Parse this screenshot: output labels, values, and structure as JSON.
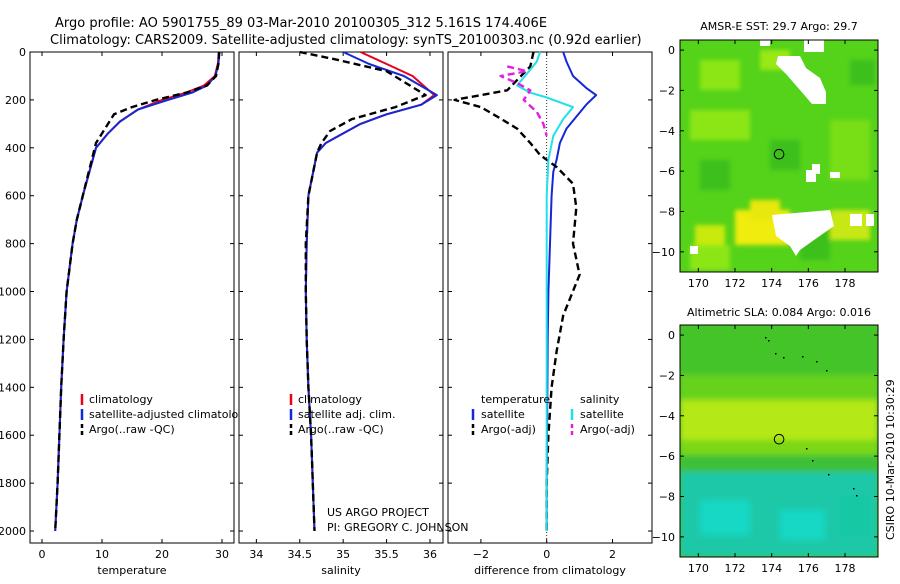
{
  "header": {
    "title_line1": "Argo profile: AO 5901755_89 03-Mar-2010 20100305_312 5.161S 174.406E",
    "title_line2": "Climatology: CARS2009. Satellite-adjusted climatology: synTS_20100303.nc (0.92d earlier)"
  },
  "footer": {
    "project_line1": "US ARGO PROJECT",
    "project_line2": "PI: GREGORY C. JOHNSON",
    "side_stamp": "CSIRO 10-Mar-2010 10:30:29"
  },
  "colors": {
    "climatology": "#e8001c",
    "satellite": "#1428d8",
    "argo": "#000000",
    "salinity_satellite": "#22e0e8",
    "salinity_argo": "#e020e0"
  },
  "chart_data": [
    {
      "type": "line",
      "id": "temperature",
      "xlabel": "temperature",
      "xlim": [
        -2,
        32
      ],
      "xticks": [
        0,
        10,
        20,
        30
      ],
      "ylim": [
        2050,
        0
      ],
      "yticks": [
        0,
        200,
        400,
        600,
        800,
        1000,
        1200,
        1400,
        1600,
        1800,
        2000
      ],
      "legend": [
        "climatology",
        "satellite-adjusted climatology",
        "Argo(..raw -QC)"
      ],
      "series": [
        {
          "name": "climatology",
          "style": "solid",
          "color_key": "climatology",
          "x": [
            29.5,
            29.3,
            28.8,
            27,
            24,
            20,
            16,
            13,
            11,
            9,
            6.8,
            5.8,
            5.1,
            4.6,
            4.1,
            3.6,
            3.2,
            2.9,
            2.6,
            2.4,
            2.2
          ],
          "y": [
            0,
            50,
            100,
            140,
            170,
            200,
            240,
            290,
            340,
            400,
            600,
            700,
            800,
            900,
            1000,
            1200,
            1400,
            1600,
            1800,
            1900,
            2000
          ]
        },
        {
          "name": "satellite-adjusted climatology",
          "style": "solid",
          "color_key": "satellite",
          "x": [
            29.6,
            29.4,
            28.9,
            27.5,
            25,
            21,
            16,
            13,
            11,
            9,
            6.8,
            5.8,
            5.1,
            4.6,
            4.1,
            3.6,
            3.2,
            2.9,
            2.6,
            2.4,
            2.2
          ],
          "y": [
            0,
            50,
            100,
            140,
            170,
            200,
            240,
            290,
            340,
            400,
            600,
            700,
            800,
            900,
            1000,
            1200,
            1400,
            1600,
            1800,
            1900,
            2000
          ]
        },
        {
          "name": "Argo(..raw -QC)",
          "style": "dashed",
          "color_key": "argo",
          "x": [
            29.5,
            29.4,
            29.0,
            27.5,
            24,
            19,
            15,
            12,
            11,
            9,
            6.8,
            5.8,
            5.1,
            4.6,
            4.1,
            3.6,
            3.2,
            2.9,
            2.6,
            2.4,
            2.2
          ],
          "y": [
            0,
            50,
            100,
            140,
            170,
            200,
            230,
            260,
            300,
            380,
            600,
            700,
            800,
            900,
            1000,
            1200,
            1400,
            1600,
            1800,
            1900,
            2000
          ]
        }
      ]
    },
    {
      "type": "line",
      "id": "salinity",
      "xlabel": "salinity",
      "xlim": [
        33.8,
        36.15
      ],
      "xticks": [
        34,
        34.5,
        35,
        35.5,
        36
      ],
      "ylim": [
        2050,
        0
      ],
      "yticks": [
        0,
        200,
        400,
        600,
        800,
        1000,
        1200,
        1400,
        1600,
        1800,
        2000
      ],
      "legend": [
        "climatology",
        "satellite adj. clim.",
        "Argo(..raw -QC)"
      ],
      "series": [
        {
          "name": "climatology",
          "style": "solid",
          "color_key": "climatology",
          "x": [
            35.2,
            35.5,
            35.8,
            36.05,
            35.9,
            35.5,
            35.2,
            35.0,
            34.8,
            34.7,
            34.6,
            34.58,
            34.57,
            34.58,
            34.6,
            34.63,
            34.65,
            34.67
          ],
          "y": [
            0,
            50,
            100,
            180,
            220,
            260,
            300,
            340,
            380,
            420,
            600,
            800,
            1000,
            1200,
            1400,
            1600,
            1800,
            2000
          ]
        },
        {
          "name": "satellite adj. clim.",
          "style": "solid",
          "color_key": "satellite",
          "x": [
            35.0,
            35.3,
            35.7,
            36.08,
            35.9,
            35.5,
            35.2,
            35.0,
            34.8,
            34.7,
            34.6,
            34.58,
            34.57,
            34.58,
            34.6,
            34.63,
            34.65,
            34.67
          ],
          "y": [
            0,
            50,
            100,
            180,
            220,
            260,
            300,
            340,
            380,
            420,
            600,
            800,
            1000,
            1200,
            1400,
            1600,
            1800,
            2000
          ]
        },
        {
          "name": "Argo(..raw -QC)",
          "style": "dashed",
          "color_key": "argo",
          "x": [
            34.5,
            34.9,
            35.5,
            35.95,
            35.6,
            35.1,
            34.85,
            34.75,
            34.7,
            34.6,
            34.57,
            34.57,
            34.58,
            34.6,
            34.63,
            34.65,
            34.67
          ],
          "y": [
            0,
            30,
            80,
            180,
            230,
            280,
            330,
            380,
            420,
            600,
            800,
            1000,
            1200,
            1400,
            1600,
            1800,
            2000
          ]
        }
      ]
    },
    {
      "type": "line",
      "id": "difference",
      "xlabel": "difference from climatology",
      "xlim": [
        -3,
        3.2
      ],
      "xticks": [
        -2,
        0,
        2
      ],
      "ylim": [
        2050,
        0
      ],
      "yticks": [
        0,
        200,
        400,
        600,
        800,
        1000,
        1200,
        1400,
        1600,
        1800,
        2000
      ],
      "legend_groups": [
        {
          "heading": "temperature",
          "items": [
            "satellite",
            "Argo(-adj)"
          ]
        },
        {
          "heading": "salinity",
          "items": [
            "satellite",
            "Argo(-adj)"
          ]
        }
      ],
      "series": [
        {
          "name": "temperature satellite",
          "style": "solid",
          "color_key": "satellite",
          "x": [
            0.5,
            0.6,
            0.8,
            1.2,
            1.5,
            1.2,
            0.9,
            0.6,
            0.4,
            0.3,
            0.2,
            0.15,
            0.1,
            0.05,
            0.03,
            0.02,
            0.01,
            0.0,
            0.0
          ],
          "y": [
            0,
            40,
            100,
            150,
            180,
            220,
            270,
            320,
            380,
            450,
            500,
            600,
            800,
            1000,
            1200,
            1400,
            1600,
            1800,
            2000
          ]
        },
        {
          "name": "temperature Argo(-adj)",
          "style": "dashed",
          "color_key": "argo",
          "x": [
            -0.4,
            -0.5,
            -1.2,
            -2.8,
            -2.0,
            -1.5,
            -0.9,
            -0.5,
            -0.2,
            0.3,
            0.8,
            0.9,
            0.8,
            1.0,
            0.5,
            0.3,
            0.15,
            0.05,
            0.0,
            0.0
          ],
          "y": [
            0,
            60,
            160,
            200,
            230,
            270,
            320,
            380,
            430,
            480,
            550,
            650,
            800,
            930,
            1100,
            1250,
            1400,
            1600,
            1800,
            2000
          ]
        },
        {
          "name": "salinity satellite",
          "style": "solid",
          "color_key": "salinity_satellite",
          "x": [
            -0.2,
            -0.3,
            -0.6,
            -0.9,
            -0.5,
            0.0,
            0.4,
            0.8,
            0.5,
            0.2,
            0.05,
            0.0,
            0.0,
            0.0,
            0.0,
            0.0
          ],
          "y": [
            0,
            40,
            90,
            140,
            170,
            190,
            210,
            230,
            280,
            350,
            450,
            600,
            1000,
            1400,
            1800,
            2000
          ]
        },
        {
          "name": "salinity Argo(-adj)",
          "style": "dashed",
          "color_key": "salinity_argo",
          "x": [
            -1.2,
            -0.6,
            -1.4,
            -0.9,
            -0.5,
            -0.7,
            -0.3,
            -0.1,
            0.0
          ],
          "y": [
            60,
            80,
            100,
            130,
            160,
            200,
            250,
            300,
            350
          ]
        }
      ]
    },
    {
      "type": "heatmap",
      "id": "sst_map",
      "title": "AMSR-E SST: 29.7 Argo: 29.7",
      "xlim": [
        169,
        179.8
      ],
      "xticks": [
        170,
        172,
        174,
        176,
        178
      ],
      "ylim": [
        -11,
        0.5
      ],
      "yticks": [
        0,
        -2,
        -4,
        -6,
        -8,
        -10
      ],
      "argo_position": {
        "lon": 174.406,
        "lat": -5.161
      }
    },
    {
      "type": "heatmap",
      "id": "sla_map",
      "title": "Altimetric SLA: 0.084 Argo: 0.016",
      "xlim": [
        169,
        179.8
      ],
      "xticks": [
        170,
        172,
        174,
        176,
        178
      ],
      "ylim": [
        -11,
        0.5
      ],
      "yticks": [
        0,
        -2,
        -4,
        -6,
        -8,
        -10
      ],
      "argo_position": {
        "lon": 174.406,
        "lat": -5.161
      }
    }
  ]
}
